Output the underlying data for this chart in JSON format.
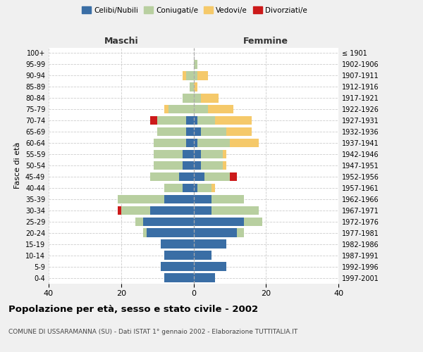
{
  "age_groups": [
    "0-4",
    "5-9",
    "10-14",
    "15-19",
    "20-24",
    "25-29",
    "30-34",
    "35-39",
    "40-44",
    "45-49",
    "50-54",
    "55-59",
    "60-64",
    "65-69",
    "70-74",
    "75-79",
    "80-84",
    "85-89",
    "90-94",
    "95-99",
    "100+"
  ],
  "birth_years": [
    "1997-2001",
    "1992-1996",
    "1987-1991",
    "1982-1986",
    "1977-1981",
    "1972-1976",
    "1967-1971",
    "1962-1966",
    "1957-1961",
    "1952-1956",
    "1947-1951",
    "1942-1946",
    "1937-1941",
    "1932-1936",
    "1927-1931",
    "1922-1926",
    "1917-1921",
    "1912-1916",
    "1907-1911",
    "1902-1906",
    "≤ 1901"
  ],
  "males": {
    "celibi": [
      8,
      9,
      8,
      9,
      13,
      14,
      12,
      8,
      3,
      4,
      3,
      3,
      2,
      2,
      2,
      0,
      0,
      0,
      0,
      0,
      0
    ],
    "coniugati": [
      0,
      0,
      0,
      0,
      1,
      2,
      8,
      13,
      5,
      8,
      8,
      8,
      9,
      8,
      8,
      7,
      3,
      1,
      2,
      0,
      0
    ],
    "vedovi": [
      0,
      0,
      0,
      0,
      0,
      0,
      0,
      0,
      0,
      0,
      0,
      0,
      0,
      0,
      0,
      1,
      0,
      0,
      1,
      0,
      0
    ],
    "divorziati": [
      0,
      0,
      0,
      0,
      0,
      0,
      1,
      0,
      0,
      0,
      0,
      0,
      0,
      0,
      2,
      0,
      0,
      0,
      0,
      0,
      0
    ]
  },
  "females": {
    "nubili": [
      6,
      9,
      5,
      9,
      12,
      14,
      5,
      5,
      1,
      3,
      2,
      2,
      1,
      2,
      1,
      0,
      0,
      0,
      0,
      0,
      0
    ],
    "coniugate": [
      0,
      0,
      0,
      0,
      2,
      5,
      13,
      9,
      4,
      7,
      6,
      6,
      9,
      7,
      5,
      4,
      2,
      0,
      1,
      1,
      0
    ],
    "vedove": [
      0,
      0,
      0,
      0,
      0,
      0,
      0,
      0,
      1,
      0,
      1,
      1,
      8,
      7,
      10,
      7,
      5,
      1,
      3,
      0,
      0
    ],
    "divorziate": [
      0,
      0,
      0,
      0,
      0,
      0,
      0,
      0,
      0,
      2,
      0,
      0,
      0,
      0,
      0,
      0,
      0,
      0,
      0,
      0,
      0
    ]
  },
  "colors": {
    "celibi": "#3a6ea5",
    "coniugati": "#b8cfa0",
    "vedovi": "#f5c96a",
    "divorziati": "#cc1a1a"
  },
  "title": "Popolazione per età, sesso e stato civile - 2002",
  "subtitle": "COMUNE DI USSARAMANNA (SU) - Dati ISTAT 1° gennaio 2002 - Elaborazione TUTTITALIA.IT",
  "xlabel_left": "Maschi",
  "xlabel_right": "Femmine",
  "ylabel_left": "Fasce di età",
  "xlim": 40,
  "background_color": "#f0f0f0",
  "plot_bg": "#ffffff"
}
